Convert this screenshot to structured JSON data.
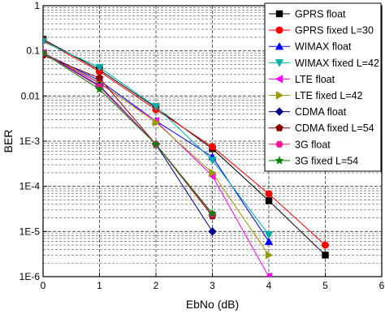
{
  "chart_data": {
    "type": "line",
    "xlabel": "EbNo (dB)",
    "ylabel": "BER",
    "xlim": [
      0,
      6
    ],
    "ylim": [
      1e-06,
      1
    ],
    "yscale": "log",
    "grid": true,
    "legend_position": "top-right",
    "x_ticks": [
      "0",
      "1",
      "2",
      "3",
      "4",
      "5",
      "6"
    ],
    "y_ticks": [
      {
        "value": 1,
        "label": "1"
      },
      {
        "value": 0.1,
        "label": "0.1"
      },
      {
        "value": 0.01,
        "label": "0.01"
      },
      {
        "value": 0.001,
        "label": "1E-3"
      },
      {
        "value": 0.0001,
        "label": "1E-4"
      },
      {
        "value": 1e-05,
        "label": "1E-5"
      },
      {
        "value": 1e-06,
        "label": "1E-6"
      }
    ],
    "series": [
      {
        "name": "GPRS float",
        "color": "#000000",
        "marker": "square",
        "x": [
          0,
          1,
          2,
          3,
          4,
          5
        ],
        "y": [
          0.18,
          0.038,
          0.0055,
          0.00068,
          4.8e-05,
          3e-06
        ]
      },
      {
        "name": "GPRS fixed L=30",
        "color": "#ff0000",
        "marker": "circle",
        "x": [
          0,
          1,
          2,
          3,
          4,
          5
        ],
        "y": [
          0.17,
          0.035,
          0.005,
          0.00075,
          6.8e-05,
          5e-06
        ]
      },
      {
        "name": "WIMAX float",
        "color": "#0000ff",
        "marker": "triangle-up",
        "x": [
          0,
          1,
          2,
          3,
          4
        ],
        "y": [
          0.09,
          0.022,
          0.0028,
          0.00045,
          6e-06
        ]
      },
      {
        "name": "WIMAX fixed L=42",
        "color": "#00aaaa",
        "marker": "triangle-down",
        "x": [
          0,
          1,
          2,
          3,
          4
        ],
        "y": [
          0.16,
          0.043,
          0.0058,
          0.00038,
          8.5e-06
        ]
      },
      {
        "name": "LTE float",
        "color": "#ff00ff",
        "marker": "triangle-left",
        "x": [
          0,
          1,
          2,
          3,
          4
        ],
        "y": [
          0.09,
          0.019,
          0.0028,
          0.00017,
          1e-06
        ]
      },
      {
        "name": "LTE fixed L=42",
        "color": "#999900",
        "marker": "triangle-right",
        "x": [
          0,
          1,
          2,
          3,
          4
        ],
        "y": [
          0.09,
          0.02,
          0.0026,
          0.0002,
          3e-06
        ]
      },
      {
        "name": "CDMA float",
        "color": "#000088",
        "marker": "diamond",
        "x": [
          0,
          1,
          2,
          3
        ],
        "y": [
          0.09,
          0.017,
          0.00085,
          1e-05
        ]
      },
      {
        "name": "CDMA fixed L=54",
        "color": "#8b0000",
        "marker": "pentagon",
        "x": [
          0,
          1,
          2,
          3
        ],
        "y": [
          0.08,
          0.025,
          0.00085,
          2.2e-05
        ]
      },
      {
        "name": "3G float",
        "color": "#ff1493",
        "marker": "hexagon",
        "x": [
          0,
          1,
          2,
          3
        ],
        "y": [
          0.09,
          0.016,
          0.00085,
          2.4e-05
        ]
      },
      {
        "name": "3G fixed L=54",
        "color": "#008000",
        "marker": "star",
        "x": [
          0,
          1,
          2,
          3
        ],
        "y": [
          0.09,
          0.014,
          0.00085,
          2.5e-05
        ]
      }
    ]
  }
}
